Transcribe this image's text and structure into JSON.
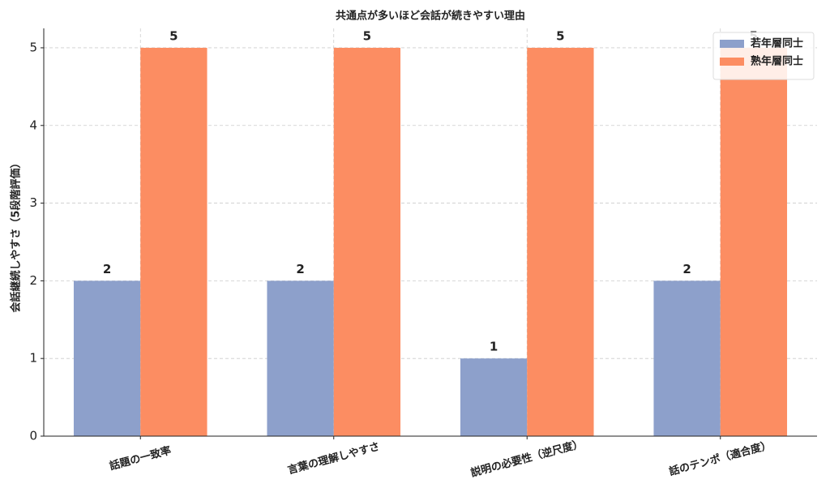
{
  "chart_data": {
    "type": "bar",
    "title": "共通点が多いほど会話が続きやすい理由",
    "y_label": "会話継続しやすさ（5段階評価）",
    "categories": [
      "話題の一致率",
      "言葉の理解しやすさ",
      "説明の必要性（逆尺度）",
      "話のテンポ（適合度）"
    ],
    "series": [
      {
        "name": "若年層同士",
        "color": "#8da0cb",
        "values": [
          2,
          2,
          1,
          2
        ]
      },
      {
        "name": "熟年層同士",
        "color": "#fc8d62",
        "values": [
          5,
          5,
          5,
          5
        ]
      }
    ],
    "ylim": [
      0,
      5.25
    ],
    "yticks": [
      0,
      1,
      2,
      3,
      4,
      5
    ],
    "grid": true,
    "legend": "upper right"
  }
}
